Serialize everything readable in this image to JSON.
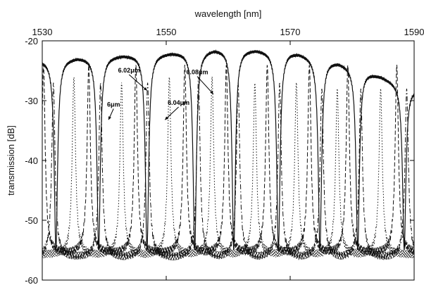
{
  "chart_data": {
    "type": "line",
    "title": "",
    "xlabel": "wavelength [nm]",
    "ylabel": "transmission [dB]",
    "xlim": [
      1530,
      1590
    ],
    "ylim": [
      -60,
      -20
    ],
    "x_ticks": [
      1530,
      1550,
      1570,
      1590
    ],
    "y_ticks": [
      -20,
      -30,
      -40,
      -50,
      -60
    ],
    "x_axis_position": "top",
    "grid": false,
    "legend": "none",
    "series": [
      {
        "style": "solid",
        "kind": "through",
        "baseline": [
          [
            1530,
            -23.2
          ],
          [
            1540,
            -22.6
          ],
          [
            1550,
            -22.1
          ],
          [
            1560,
            -21.3
          ],
          [
            1570,
            -21.8
          ],
          [
            1580,
            -24.2
          ],
          [
            1590,
            -28.0
          ]
        ],
        "dips": [
          [
            1532.2,
            -55
          ],
          [
            1539.1,
            -55
          ],
          [
            1546.9,
            -55
          ],
          [
            1554.6,
            -55
          ],
          [
            1560.9,
            -55
          ],
          [
            1568.1,
            -55
          ],
          [
            1574.8,
            -55
          ],
          [
            1580.9,
            -55
          ],
          [
            1588.4,
            -55
          ]
        ],
        "floor": -55
      },
      {
        "style": "dashed",
        "kind": "drop",
        "baseline": [
          [
            1530,
            -55.5
          ],
          [
            1560,
            -55.5
          ],
          [
            1590,
            -55.5
          ]
        ],
        "peaks": [
          [
            1530.2,
            -24
          ],
          [
            1537.5,
            -24
          ],
          [
            1545.1,
            -24
          ],
          [
            1553.0,
            -24
          ],
          [
            1559.7,
            -24
          ],
          [
            1566.3,
            -24
          ],
          [
            1573.1,
            -24
          ],
          [
            1579.3,
            -24
          ],
          [
            1587.2,
            -24
          ]
        ],
        "floor": -55.5
      },
      {
        "style": "dotted",
        "kind": "drop",
        "baseline": [
          [
            1530,
            -55.8
          ],
          [
            1560,
            -55.8
          ],
          [
            1590,
            -55.8
          ]
        ],
        "peaks": [
          [
            1535.1,
            -26
          ],
          [
            1542.8,
            -27
          ],
          [
            1550.5,
            -26
          ],
          [
            1557.4,
            -26
          ],
          [
            1564.3,
            -27
          ],
          [
            1571.0,
            -27
          ],
          [
            1577.6,
            -28
          ],
          [
            1584.6,
            -28
          ]
        ],
        "floor": -55.8
      },
      {
        "style": "dashdot",
        "kind": "drop",
        "baseline": [
          [
            1530,
            -56.2
          ],
          [
            1560,
            -56.2
          ],
          [
            1590,
            -56.2
          ]
        ],
        "peaks": [
          [
            1531.8,
            -27
          ],
          [
            1539.4,
            -27
          ],
          [
            1547.0,
            -27
          ],
          [
            1555.2,
            -26
          ],
          [
            1561.6,
            -27
          ],
          [
            1568.3,
            -27
          ],
          [
            1575.1,
            -28
          ],
          [
            1581.4,
            -28
          ],
          [
            1588.8,
            -28
          ]
        ],
        "floor": -56.2
      }
    ],
    "annotations": [
      {
        "text": "6.02μm",
        "x": 1544.0,
        "y": -25.3,
        "arrow_to": [
          1546.9,
          -28.3
        ]
      },
      {
        "text": "6μm",
        "x": 1541.5,
        "y": -31.0,
        "arrow_to": [
          1540.7,
          -33.2
        ]
      },
      {
        "text": "6.08μm",
        "x": 1555.0,
        "y": -25.6,
        "arrow_to": [
          1557.6,
          -28.9
        ]
      },
      {
        "text": "6.04μm",
        "x": 1552.0,
        "y": -30.7,
        "arrow_to": [
          1549.8,
          -33.2
        ]
      }
    ]
  }
}
